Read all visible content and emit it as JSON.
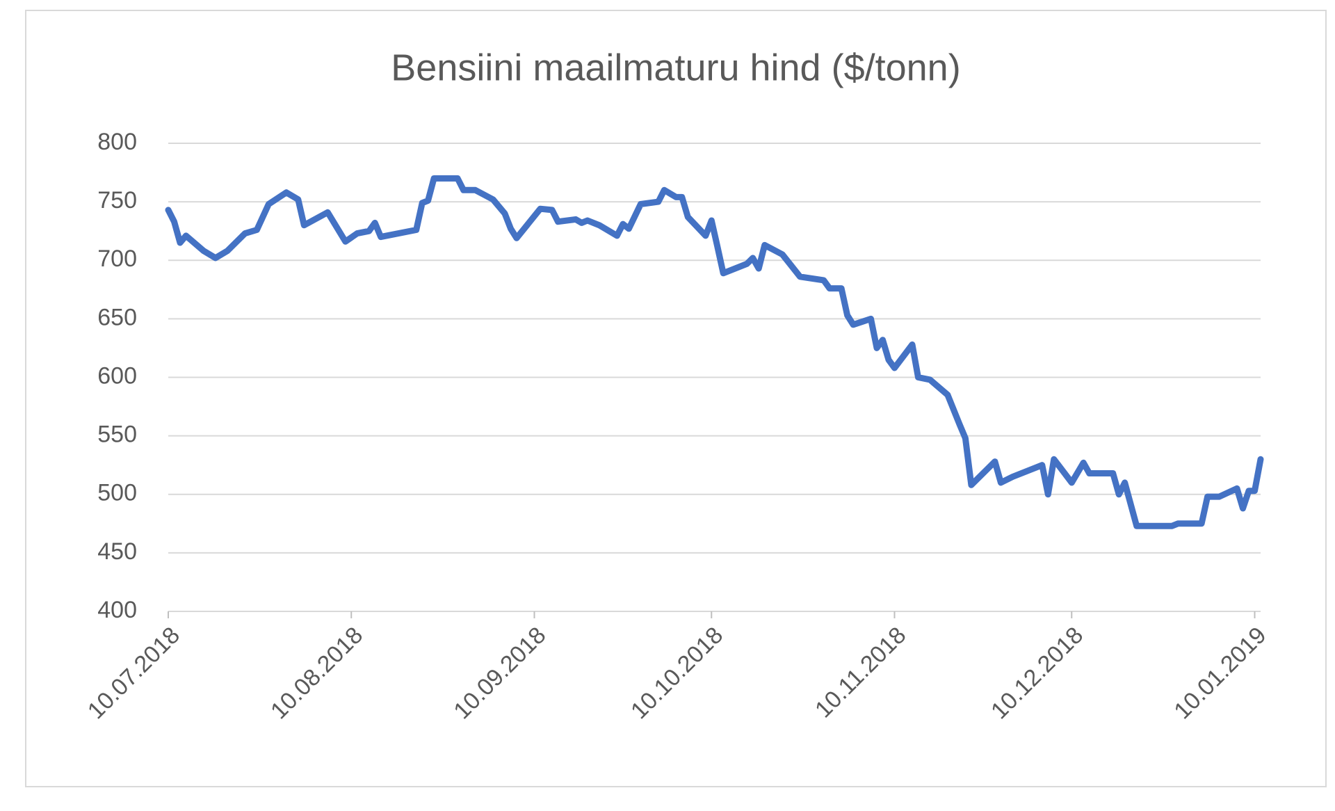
{
  "chart_data": {
    "type": "line",
    "title": "Bensiini maailmaturu hind ($/tonn)",
    "color": "#4472c4",
    "grid": true,
    "x": [
      "10.07.2018",
      "11.07.2018",
      "12.07.2018",
      "13.07.2018",
      "16.07.2018",
      "18.07.2018",
      "20.07.2018",
      "23.07.2018",
      "25.07.2018",
      "27.07.2018",
      "30.07.2018",
      "01.08.2018",
      "02.08.2018",
      "06.08.2018",
      "09.08.2018",
      "11.08.2018",
      "13.08.2018",
      "14.08.2018",
      "15.08.2018",
      "21.08.2018",
      "22.08.2018",
      "23.08.2018",
      "24.08.2018",
      "28.08.2018",
      "29.08.2018",
      "31.08.2018",
      "03.09.2018",
      "05.09.2018",
      "06.09.2018",
      "07.09.2018",
      "11.09.2018",
      "13.09.2018",
      "14.09.2018",
      "17.09.2018",
      "18.09.2018",
      "19.09.2018",
      "21.09.2018",
      "24.09.2018",
      "25.09.2018",
      "26.09.2018",
      "28.09.2018",
      "01.10.2018",
      "02.10.2018",
      "04.10.2018",
      "05.10.2018",
      "06.10.2018",
      "09.10.2018",
      "10.10.2018",
      "11.10.2018",
      "12.10.2018",
      "16.10.2018",
      "17.10.2018",
      "18.10.2018",
      "19.10.2018",
      "22.10.2018",
      "25.10.2018",
      "29.10.2018",
      "30.10.2018",
      "01.11.2018",
      "02.11.2018",
      "03.11.2018",
      "06.11.2018",
      "07.11.2018",
      "08.11.2018",
      "09.11.2018",
      "10.11.2018",
      "13.11.2018",
      "14.11.2018",
      "16.11.2018",
      "19.11.2018",
      "21.11.2018",
      "22.11.2018",
      "23.11.2018",
      "27.11.2018",
      "28.11.2018",
      "30.11.2018",
      "05.12.2018",
      "06.12.2018",
      "07.12.2018",
      "10.12.2018",
      "12.12.2018",
      "13.12.2018",
      "17.12.2018",
      "18.12.2018",
      "19.12.2018",
      "21.12.2018",
      "27.12.2018",
      "28.12.2018",
      "01.01.2019",
      "02.01.2019",
      "04.01.2019",
      "07.01.2019",
      "08.01.2019",
      "09.01.2019",
      "10.01.2019",
      "11.01.2019"
    ],
    "values": [
      743,
      733,
      715,
      721,
      708,
      702,
      708,
      723,
      726,
      748,
      758,
      752,
      730,
      741,
      716,
      723,
      725,
      732,
      720,
      726,
      749,
      751,
      770,
      770,
      760,
      760,
      752,
      740,
      727,
      719,
      744,
      743,
      733,
      735,
      732,
      734,
      730,
      721,
      731,
      727,
      748,
      750,
      760,
      754,
      754,
      737,
      721,
      734,
      712,
      689,
      697,
      702,
      693,
      713,
      705,
      686,
      683,
      676,
      676,
      653,
      645,
      650,
      625,
      632,
      615,
      608,
      628,
      600,
      598,
      585,
      560,
      548,
      508,
      528,
      510,
      515,
      525,
      500,
      530,
      510,
      527,
      518,
      518,
      500,
      510,
      473,
      473,
      475,
      475,
      498,
      498,
      505,
      488,
      503,
      503,
      530
    ],
    "xlim": [
      "10.07.2018",
      "11.01.2019"
    ],
    "xticks": [
      "10.07.2018",
      "10.08.2018",
      "10.09.2018",
      "10.10.2018",
      "10.11.2018",
      "10.12.2018",
      "10.01.2019"
    ],
    "ylim": [
      400,
      800
    ],
    "yticks": [
      400,
      450,
      500,
      550,
      600,
      650,
      700,
      750,
      800
    ]
  }
}
